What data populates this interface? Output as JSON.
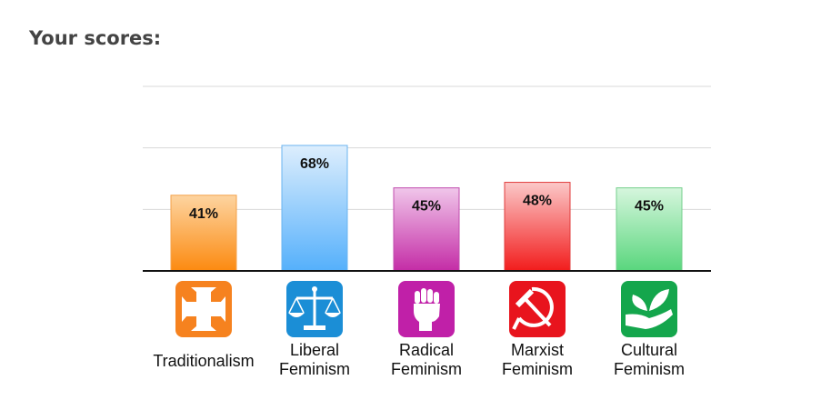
{
  "heading": "Your scores:",
  "chart_data": {
    "type": "bar",
    "categories": [
      "Traditionalism",
      "Liberal Feminism",
      "Radical Feminism",
      "Marxist Feminism",
      "Cultural Feminism"
    ],
    "values": [
      41,
      68,
      45,
      48,
      45
    ],
    "value_labels": [
      "41%",
      "68%",
      "45%",
      "48%",
      "45%"
    ],
    "category_lines": [
      [
        "Traditionalism"
      ],
      [
        "Liberal",
        "Feminism"
      ],
      [
        "Radical",
        "Feminism"
      ],
      [
        "Marxist",
        "Feminism"
      ],
      [
        "Cultural",
        "Feminism"
      ]
    ],
    "icons": [
      "cross-icon",
      "scales-icon",
      "raised-fist-icon",
      "hammer-sickle-icon",
      "hand-leaf-icon"
    ],
    "colors": {
      "bar_top": [
        "#fdd4a0",
        "#ddeefd",
        "#f0c6ea",
        "#fbc8c8",
        "#d6f6dd"
      ],
      "bar_bottom": [
        "#fc8a10",
        "#55b0fb",
        "#c42ca6",
        "#f21c1c",
        "#59d67d"
      ],
      "bar_border": [
        "#f4a24a",
        "#6ab4f0",
        "#c04cae",
        "#e03c3c",
        "#74cf8c"
      ],
      "icon_bg": [
        "#f6821f",
        "#1b8ed6",
        "#c020a8",
        "#e8141d",
        "#14a64c"
      ]
    },
    "ylim": [
      0,
      100
    ],
    "grid": true,
    "xlabel": "",
    "ylabel": ""
  }
}
